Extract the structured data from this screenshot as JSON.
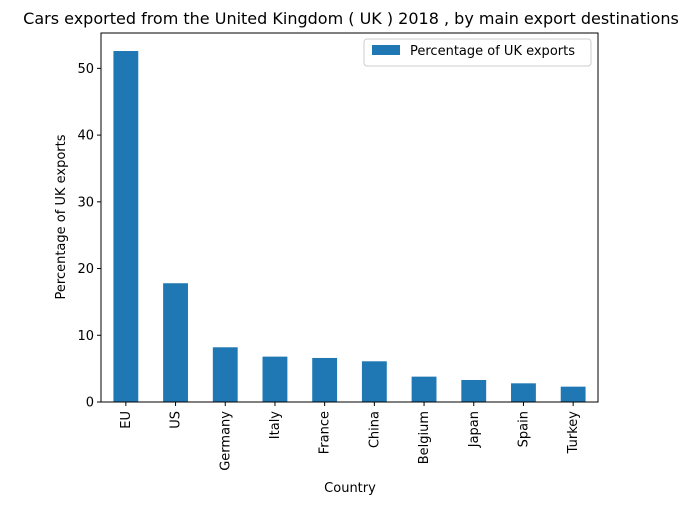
{
  "chart_data": {
    "type": "bar",
    "title": "Cars exported from the United Kingdom ( UK ) 2018 , by main export destinations",
    "xlabel": "Country",
    "ylabel": "Percentage of UK exports",
    "categories": [
      "EU",
      "US",
      "Germany",
      "Italy",
      "France",
      "China",
      "Belgium",
      "Japan",
      "Spain",
      "Turkey"
    ],
    "series": [
      {
        "name": "Percentage of UK exports",
        "color": "#1f77b4",
        "values": [
          52.6,
          17.8,
          8.2,
          6.8,
          6.6,
          6.1,
          3.8,
          3.3,
          2.8,
          2.3
        ]
      }
    ],
    "ylim": [
      0,
      55.3
    ],
    "yticks": [
      0,
      10,
      20,
      30,
      40,
      50
    ],
    "grid": false,
    "legend_position": "top-right"
  }
}
